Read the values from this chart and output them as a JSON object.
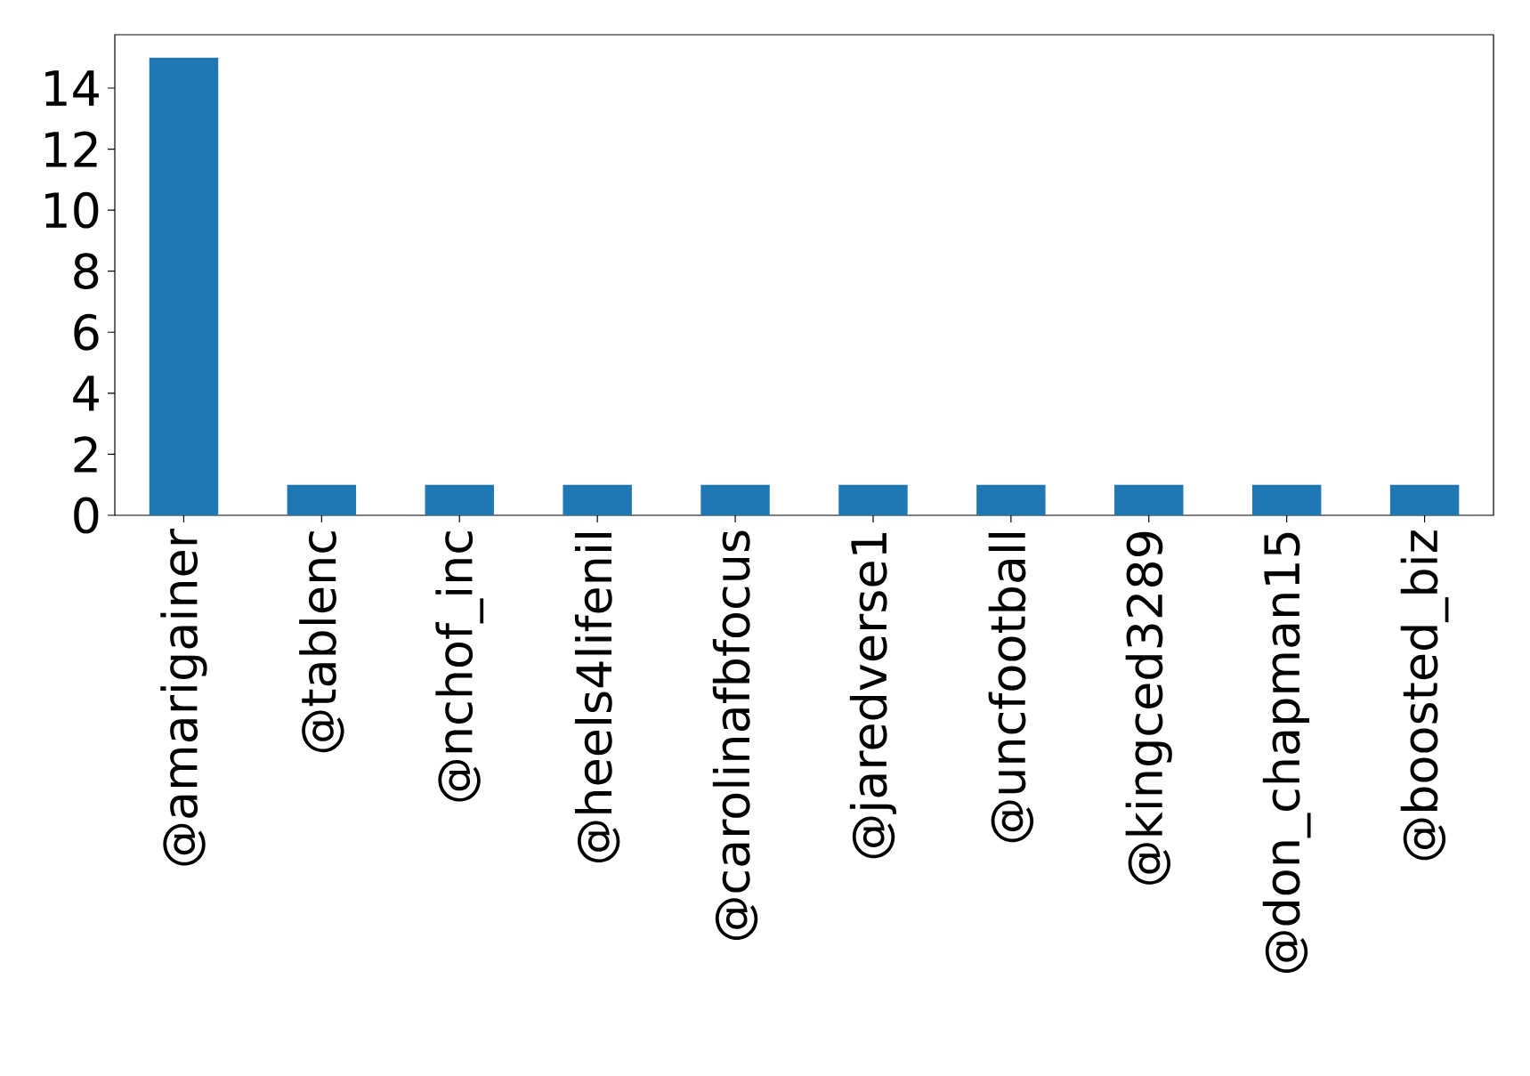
{
  "chart_data": {
    "type": "bar",
    "categories": [
      "@amarigainer",
      "@tablenc",
      "@nchof_inc",
      "@heels4lifenil",
      "@carolinafbfocus",
      "@jaredverse1",
      "@uncfootball",
      "@kingced3289",
      "@don_chapman15",
      "@boosted_biz"
    ],
    "values": [
      15,
      1,
      1,
      1,
      1,
      1,
      1,
      1,
      1,
      1
    ],
    "color": "#1f77b4",
    "ylim": [
      0,
      15.75
    ],
    "yticks": [
      0,
      2,
      4,
      6,
      8,
      10,
      12,
      14
    ]
  }
}
